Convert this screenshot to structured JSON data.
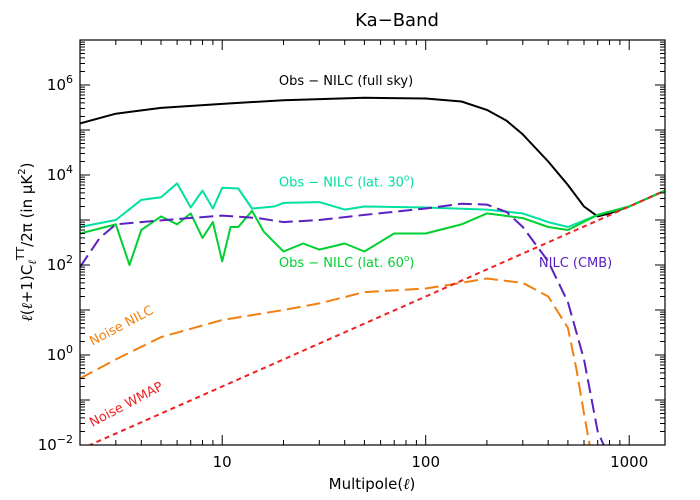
{
  "chart_data": {
    "type": "line",
    "title": "Ka−Band",
    "xlabel": "Multipole(ℓ)",
    "ylabel": "ℓ(ℓ+1)CℓTT/2π (in μK²)",
    "xscale": "log",
    "yscale": "log",
    "xlim": [
      2,
      1500
    ],
    "ylim": [
      0.01,
      10000000
    ],
    "x_tick_labels": [
      {
        "v": 10,
        "t": "10"
      },
      {
        "v": 100,
        "t": "100"
      },
      {
        "v": 1000,
        "t": "1000"
      }
    ],
    "y_tick_labels": [
      {
        "v": 0.01,
        "b": "10",
        "e": "−2"
      },
      {
        "v": 1,
        "b": "10",
        "e": "0"
      },
      {
        "v": 100,
        "b": "10",
        "e": "2"
      },
      {
        "v": 10000,
        "b": "10",
        "e": "4"
      },
      {
        "v": 1000000,
        "b": "10",
        "e": "6"
      }
    ],
    "series": [
      {
        "name": "Obs − NILC (full sky)",
        "color": "#000000",
        "dash": "",
        "points": [
          [
            2,
            140000
          ],
          [
            3,
            230000
          ],
          [
            5,
            310000
          ],
          [
            10,
            380000
          ],
          [
            20,
            460000
          ],
          [
            50,
            520000
          ],
          [
            100,
            500000
          ],
          [
            150,
            430000
          ],
          [
            200,
            280000
          ],
          [
            250,
            160000
          ],
          [
            300,
            80000
          ],
          [
            400,
            20000
          ],
          [
            500,
            6000
          ],
          [
            600,
            2000
          ],
          [
            700,
            1200
          ],
          [
            800,
            1400
          ],
          [
            1000,
            2000
          ],
          [
            1500,
            4500
          ]
        ]
      },
      {
        "name": "Obs − NILC (lat. 30°)",
        "color": "#00e0a0",
        "dash": "",
        "points": [
          [
            2,
            700
          ],
          [
            3,
            1000
          ],
          [
            4,
            2800
          ],
          [
            5,
            3200
          ],
          [
            6,
            6500
          ],
          [
            7,
            1900
          ],
          [
            8,
            4500
          ],
          [
            9,
            1800
          ],
          [
            10,
            5200
          ],
          [
            12,
            5000
          ],
          [
            14,
            1800
          ],
          [
            18,
            2000
          ],
          [
            20,
            2400
          ],
          [
            30,
            2500
          ],
          [
            40,
            1700
          ],
          [
            50,
            2000
          ],
          [
            100,
            1900
          ],
          [
            200,
            1700
          ],
          [
            300,
            1400
          ],
          [
            400,
            900
          ],
          [
            500,
            700
          ],
          [
            700,
            1300
          ],
          [
            1000,
            2000
          ],
          [
            1500,
            4500
          ]
        ]
      },
      {
        "name": "Obs − NILC (lat. 60°)",
        "color": "#00d030",
        "dash": "",
        "points": [
          [
            2,
            500
          ],
          [
            3,
            800
          ],
          [
            3.5,
            100
          ],
          [
            4,
            600
          ],
          [
            5,
            1200
          ],
          [
            6,
            800
          ],
          [
            7,
            1400
          ],
          [
            8,
            400
          ],
          [
            9,
            900
          ],
          [
            10,
            120
          ],
          [
            11,
            700
          ],
          [
            12,
            700
          ],
          [
            14,
            1600
          ],
          [
            16,
            550
          ],
          [
            20,
            200
          ],
          [
            25,
            300
          ],
          [
            30,
            220
          ],
          [
            40,
            300
          ],
          [
            50,
            200
          ],
          [
            70,
            500
          ],
          [
            100,
            500
          ],
          [
            150,
            800
          ],
          [
            200,
            1400
          ],
          [
            300,
            1100
          ],
          [
            400,
            700
          ],
          [
            500,
            600
          ],
          [
            700,
            1300
          ],
          [
            1000,
            2000
          ],
          [
            1500,
            4500
          ]
        ]
      },
      {
        "name": "NILC (CMB)",
        "color": "#5a20c0",
        "dash": "14,6",
        "points": [
          [
            2,
            90
          ],
          [
            2.5,
            400
          ],
          [
            3,
            800
          ],
          [
            4,
            900
          ],
          [
            6,
            1050
          ],
          [
            10,
            1250
          ],
          [
            15,
            1100
          ],
          [
            20,
            900
          ],
          [
            30,
            1000
          ],
          [
            50,
            1300
          ],
          [
            100,
            1800
          ],
          [
            150,
            2300
          ],
          [
            200,
            2200
          ],
          [
            250,
            1500
          ],
          [
            300,
            700
          ],
          [
            400,
            120
          ],
          [
            500,
            15
          ],
          [
            600,
            0.8
          ],
          [
            700,
            0.02
          ],
          [
            750,
            0.01
          ]
        ]
      },
      {
        "name": "Noise NILC",
        "color": "#f08010",
        "dash": "14,6",
        "points": [
          [
            2,
            0.3
          ],
          [
            3,
            0.8
          ],
          [
            5,
            2.5
          ],
          [
            10,
            6
          ],
          [
            20,
            10
          ],
          [
            30,
            14
          ],
          [
            50,
            25
          ],
          [
            100,
            30
          ],
          [
            150,
            40
          ],
          [
            200,
            50
          ],
          [
            300,
            40
          ],
          [
            400,
            20
          ],
          [
            500,
            4
          ],
          [
            550,
            0.5
          ],
          [
            600,
            0.05
          ],
          [
            640,
            0.01
          ]
        ]
      },
      {
        "name": "Noise WMAP",
        "color": "#ee2222",
        "dash": "5,4",
        "points": [
          [
            2,
            0.008
          ],
          [
            10,
            0.2
          ],
          [
            100,
            20
          ],
          [
            1000,
            2000
          ],
          [
            1500,
            4500
          ]
        ]
      }
    ],
    "annotations": [
      {
        "text": "Obs − NILC (full sky)",
        "x": 19,
        "y": 1000000,
        "color": "#000000",
        "rotate": false
      },
      {
        "text": "Obs − NILC (lat. 30",
        "sup": "o",
        "tail": ")",
        "x": 19,
        "y": 5500,
        "color": "#00e0a0",
        "rotate": false
      },
      {
        "text": "Obs − NILC (lat. 60",
        "sup": "o",
        "tail": ")",
        "x": 19,
        "y": 90,
        "color": "#00d030",
        "rotate": false
      },
      {
        "text": "NILC (CMB)",
        "x": 360,
        "y": 90,
        "color": "#5a20c0",
        "rotate": false
      },
      {
        "text": "Noise NILC",
        "x": 2.3,
        "y": 1.6,
        "color": "#f08010",
        "rotate": true
      },
      {
        "text": "Noise WMAP",
        "x": 2.3,
        "y": 0.025,
        "color": "#ee2222",
        "rotate": true
      }
    ]
  }
}
